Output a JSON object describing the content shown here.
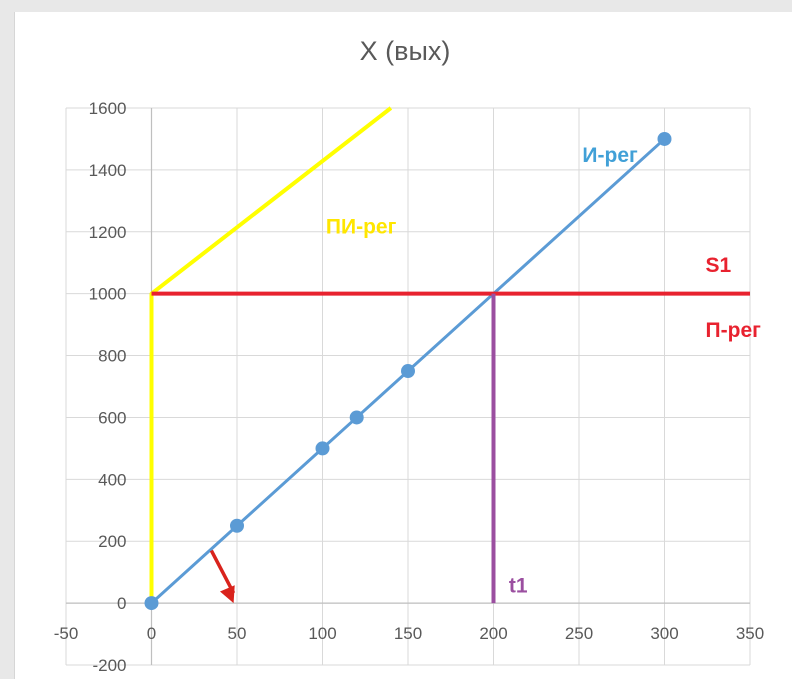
{
  "chart_data": {
    "type": "line",
    "title": "X (вых)",
    "xlabel": "",
    "ylabel": "",
    "xlim": [
      -50,
      350
    ],
    "ylim": [
      -200,
      1600
    ],
    "x_ticks": [
      -50,
      0,
      50,
      100,
      150,
      200,
      250,
      300,
      350
    ],
    "y_ticks": [
      -200,
      0,
      200,
      400,
      600,
      800,
      1000,
      1200,
      1400,
      1600
    ],
    "grid": true,
    "series": [
      {
        "name": "И-рег",
        "color": "#5b9bd5",
        "markers": true,
        "points": [
          [
            0,
            0
          ],
          [
            50,
            250
          ],
          [
            100,
            500
          ],
          [
            120,
            600
          ],
          [
            150,
            750
          ],
          [
            300,
            1500
          ]
        ]
      },
      {
        "name": "ПИ-рег",
        "color": "#ffff00",
        "markers": false,
        "points": [
          [
            0,
            0
          ],
          [
            0,
            1000
          ],
          [
            140,
            1600
          ]
        ]
      },
      {
        "name": "П-рег",
        "color": "#e8222f",
        "markers": false,
        "points": [
          [
            0,
            1000
          ],
          [
            350,
            1000
          ]
        ]
      },
      {
        "name": "t1",
        "color": "#9b4fa0",
        "markers": false,
        "points": [
          [
            200,
            0
          ],
          [
            200,
            1000
          ]
        ]
      }
    ],
    "annotations": [
      {
        "text": "И-рег",
        "x": 252,
        "y": 1425,
        "color": "#41a0d7"
      },
      {
        "text": "ПИ-рег",
        "x": 102,
        "y": 1195,
        "color": "#ffe600"
      },
      {
        "text": "S1",
        "x": 324,
        "y": 1070,
        "color": "#e8222f"
      },
      {
        "text": "П-рег",
        "x": 324,
        "y": 860,
        "color": "#e8222f"
      },
      {
        "text": "t1",
        "x": 209,
        "y": 35,
        "color": "#9b4fa0"
      }
    ],
    "arrow": {
      "color": "#d9231c",
      "from": [
        35,
        170
      ],
      "to": [
        48,
        0
      ]
    }
  }
}
